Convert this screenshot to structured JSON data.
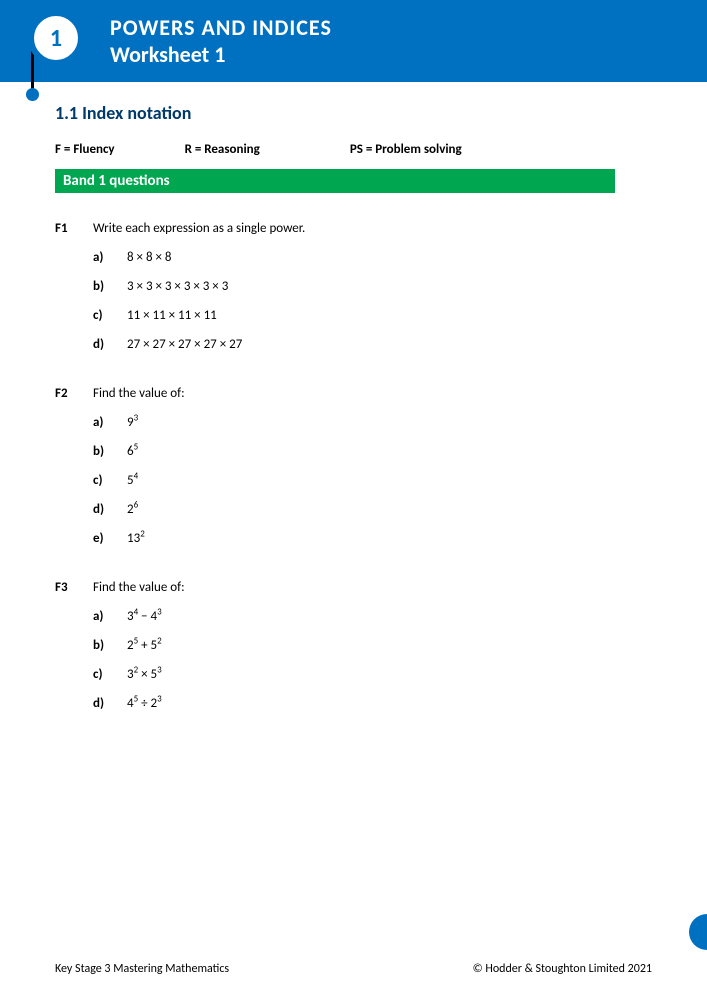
{
  "colors": {
    "banner": "#0070c0",
    "band": "#00a650",
    "heading": "#003a6a",
    "text": "#000000",
    "page_bg": "#ffffff"
  },
  "header": {
    "chapter_number": "1",
    "title_line1": "POWERS AND INDICES",
    "title_line2": "Worksheet 1"
  },
  "section_heading": "1.1 Index notation",
  "key": [
    "F = Fluency",
    "R = Reasoning",
    "PS = Problem solving"
  ],
  "band_label": "Band 1 questions",
  "questions": [
    {
      "code": "F1",
      "prompt": "Write each expression as a single power.",
      "parts": [
        {
          "label": "a)",
          "expr": "8 × 8 × 8"
        },
        {
          "label": "b)",
          "expr": "3 × 3 × 3 × 3 × 3 × 3"
        },
        {
          "label": "c)",
          "expr": "11 × 11 × 11 × 11"
        },
        {
          "label": "d)",
          "expr": "27 × 27 × 27 × 27 × 27"
        }
      ]
    },
    {
      "code": "F2",
      "prompt": "Find the value of:",
      "parts": [
        {
          "label": "a)",
          "expr": "9<sup>3</sup>"
        },
        {
          "label": "b)",
          "expr": "6<sup>5</sup>"
        },
        {
          "label": "c)",
          "expr": "5<sup>4</sup>"
        },
        {
          "label": "d)",
          "expr": "2<sup>6</sup>"
        },
        {
          "label": "e)",
          "expr": "13<sup>2</sup>"
        }
      ]
    },
    {
      "code": "F3",
      "prompt": "Find the value of:",
      "parts": [
        {
          "label": "a)",
          "expr": "3<sup>4</sup> − 4<sup>3</sup>"
        },
        {
          "label": "b)",
          "expr": "2<sup>5</sup> + 5<sup>2</sup>"
        },
        {
          "label": "c)",
          "expr": "3<sup>2</sup> × 5<sup>3</sup>"
        },
        {
          "label": "d)",
          "expr": "4<sup>5</sup> ÷  2<sup>3</sup>"
        }
      ]
    }
  ],
  "footer": {
    "left": "Key Stage 3 Mastering Mathematics",
    "right": "© Hodder & Stoughton Limited 2021"
  }
}
